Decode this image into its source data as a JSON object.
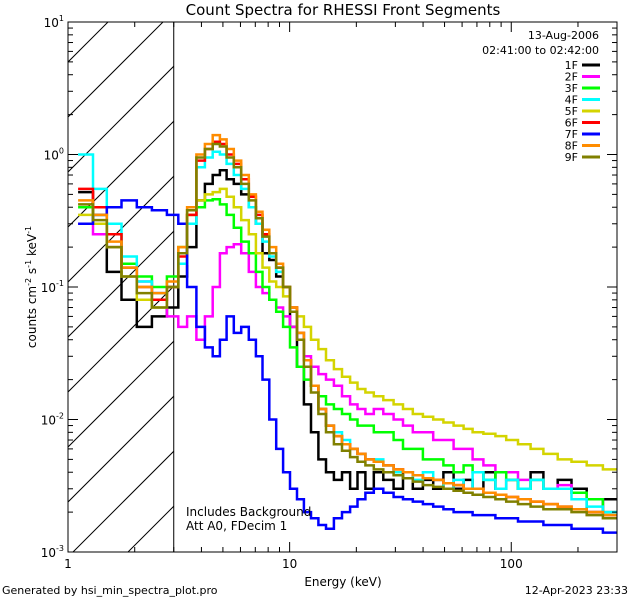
{
  "chart_data": {
    "type": "line",
    "style": "histogram-steps",
    "title": "Count Spectra for RHESSI Front Segments",
    "xlabel": "Energy (keV)",
    "ylabel": "counts cm-2 s-1 keV-1",
    "xscale": "log",
    "yscale": "log",
    "xlim": [
      1,
      300
    ],
    "ylim": [
      0.001,
      10
    ],
    "x_ticks": [
      {
        "v": 1,
        "label": "1"
      },
      {
        "v": 10,
        "label": "10"
      },
      {
        "v": 100,
        "label": "100"
      }
    ],
    "y_ticks": [
      {
        "exp": 1,
        "base": "10",
        "sup": "1"
      },
      {
        "exp": 0,
        "base": "10",
        "sup": "0"
      },
      {
        "exp": -1,
        "base": "10",
        "sup": "-1"
      },
      {
        "exp": -2,
        "base": "10",
        "sup": "-2"
      },
      {
        "exp": -3,
        "base": "10",
        "sup": "-3"
      }
    ],
    "shaded_region": {
      "x_start": 1,
      "x_end": 3,
      "pattern": "diagonal hatch"
    },
    "annotation_date": "13-Aug-2006",
    "annotation_time": "02:41:00 to 02:42:00",
    "notes": [
      "Includes Background",
      "Att A0, FDecim 1"
    ],
    "legend_position": "top-right",
    "series": [
      {
        "name": "1F",
        "color": "#000000",
        "energy": [
          1.2,
          1.4,
          1.6,
          1.9,
          2.2,
          2.6,
          3.0,
          3.3,
          3.6,
          4.0,
          4.3,
          4.7,
          5.0,
          5.4,
          5.8,
          6.3,
          6.8,
          7.3,
          7.8,
          8.4,
          9.0,
          9.7,
          10.4,
          11.2,
          12.0,
          13.0,
          14.0,
          15.2,
          16.5,
          18.0,
          19.5,
          21,
          23,
          25,
          28,
          31,
          34,
          38,
          42,
          47,
          52,
          58,
          64,
          70,
          80,
          90,
          100,
          115,
          130,
          150,
          175,
          200,
          240,
          280
        ],
        "counts": [
          0.52,
          0.3,
          0.13,
          0.08,
          0.05,
          0.06,
          0.07,
          0.12,
          0.2,
          0.45,
          0.6,
          0.7,
          0.76,
          0.65,
          0.6,
          0.5,
          0.4,
          0.3,
          0.18,
          0.16,
          0.12,
          0.1,
          0.05,
          0.025,
          0.013,
          0.008,
          0.005,
          0.004,
          0.0035,
          0.004,
          0.003,
          0.004,
          0.003,
          0.004,
          0.0035,
          0.003,
          0.004,
          0.003,
          0.0035,
          0.003,
          0.004,
          0.003,
          0.0035,
          0.003,
          0.004,
          0.003,
          0.0035,
          0.003,
          0.004,
          0.003,
          0.0035,
          0.003,
          0.002,
          0.0025
        ]
      },
      {
        "name": "2F",
        "color": "#ff00ff",
        "energy": [
          1.2,
          1.4,
          1.6,
          1.9,
          2.2,
          2.6,
          3.0,
          3.3,
          3.6,
          4.0,
          4.3,
          4.7,
          5.0,
          5.4,
          5.8,
          6.3,
          6.8,
          7.3,
          7.8,
          8.4,
          9.0,
          9.7,
          10.4,
          11.2,
          12.0,
          13.0,
          14.0,
          15.2,
          16.5,
          18.0,
          19.5,
          21,
          23,
          25,
          28,
          31,
          34,
          38,
          42,
          47,
          52,
          58,
          64,
          70,
          80,
          90,
          100,
          115,
          130,
          150,
          175,
          200,
          240,
          280
        ],
        "counts": [
          0.3,
          0.25,
          0.2,
          0.15,
          0.11,
          0.09,
          0.06,
          0.05,
          0.06,
          0.04,
          0.06,
          0.1,
          0.18,
          0.2,
          0.21,
          0.18,
          0.13,
          0.1,
          0.09,
          0.08,
          0.07,
          0.06,
          0.05,
          0.04,
          0.03,
          0.025,
          0.022,
          0.02,
          0.018,
          0.015,
          0.013,
          0.012,
          0.011,
          0.012,
          0.011,
          0.01,
          0.009,
          0.008,
          0.008,
          0.007,
          0.007,
          0.006,
          0.006,
          0.005,
          0.0045,
          0.004,
          0.004,
          0.0035,
          0.0035,
          0.003,
          0.0032,
          0.0028,
          0.0025,
          0.002
        ]
      },
      {
        "name": "3F",
        "color": "#00ff00",
        "energy": [
          1.2,
          1.4,
          1.6,
          1.9,
          2.2,
          2.6,
          3.0,
          3.3,
          3.6,
          4.0,
          4.3,
          4.7,
          5.0,
          5.4,
          5.8,
          6.3,
          6.8,
          7.3,
          7.8,
          8.4,
          9.0,
          9.7,
          10.4,
          11.2,
          12.0,
          13.0,
          14.0,
          15.2,
          16.5,
          18.0,
          19.5,
          21,
          23,
          25,
          28,
          31,
          34,
          38,
          42,
          47,
          52,
          58,
          64,
          70,
          80,
          90,
          100,
          115,
          130,
          150,
          175,
          200,
          240,
          280
        ],
        "counts": [
          0.4,
          0.35,
          0.25,
          0.15,
          0.12,
          0.1,
          0.12,
          0.2,
          0.35,
          0.4,
          0.45,
          0.46,
          0.42,
          0.35,
          0.28,
          0.22,
          0.18,
          0.13,
          0.1,
          0.08,
          0.065,
          0.05,
          0.035,
          0.025,
          0.02,
          0.018,
          0.015,
          0.013,
          0.012,
          0.011,
          0.01,
          0.009,
          0.009,
          0.008,
          0.008,
          0.007,
          0.006,
          0.006,
          0.005,
          0.005,
          0.0045,
          0.004,
          0.0045,
          0.004,
          0.0035,
          0.004,
          0.0035,
          0.003,
          0.0035,
          0.003,
          0.003,
          0.0028,
          0.0025,
          0.002
        ]
      },
      {
        "name": "4F",
        "color": "#00ffff",
        "energy": [
          1.2,
          1.4,
          1.6,
          1.9,
          2.2,
          2.6,
          3.0,
          3.3,
          3.6,
          4.0,
          4.3,
          4.7,
          5.0,
          5.4,
          5.8,
          6.3,
          6.8,
          7.3,
          7.8,
          8.4,
          9.0,
          9.7,
          10.4,
          11.2,
          12.0,
          13.0,
          14.0,
          15.2,
          16.5,
          18.0,
          19.5,
          21,
          23,
          25,
          28,
          31,
          34,
          38,
          42,
          47,
          52,
          58,
          64,
          70,
          80,
          90,
          100,
          115,
          130,
          150,
          175,
          200,
          240,
          280
        ],
        "counts": [
          1.0,
          0.55,
          0.3,
          0.17,
          0.11,
          0.09,
          0.1,
          0.15,
          0.3,
          0.8,
          0.95,
          1.05,
          1.0,
          0.85,
          0.7,
          0.55,
          0.4,
          0.3,
          0.22,
          0.17,
          0.13,
          0.1,
          0.07,
          0.045,
          0.028,
          0.018,
          0.012,
          0.009,
          0.008,
          0.007,
          0.006,
          0.0055,
          0.005,
          0.005,
          0.0045,
          0.004,
          0.004,
          0.0035,
          0.004,
          0.0035,
          0.003,
          0.0035,
          0.003,
          0.004,
          0.0035,
          0.003,
          0.0035,
          0.003,
          0.0035,
          0.003,
          0.003,
          0.0025,
          0.0022,
          0.002
        ]
      },
      {
        "name": "5F",
        "color": "#d4d400",
        "energy": [
          1.2,
          1.4,
          1.6,
          1.9,
          2.2,
          2.6,
          3.0,
          3.3,
          3.6,
          4.0,
          4.3,
          4.7,
          5.0,
          5.4,
          5.8,
          6.3,
          6.8,
          7.3,
          7.8,
          8.4,
          9.0,
          9.7,
          10.4,
          11.2,
          12.0,
          13.0,
          14.0,
          15.2,
          16.5,
          18.0,
          19.5,
          21,
          23,
          25,
          28,
          31,
          34,
          38,
          42,
          47,
          52,
          58,
          64,
          70,
          80,
          90,
          100,
          115,
          130,
          150,
          175,
          200,
          240,
          280
        ],
        "counts": [
          0.35,
          0.3,
          0.2,
          0.12,
          0.08,
          0.07,
          0.1,
          0.2,
          0.35,
          0.45,
          0.5,
          0.52,
          0.55,
          0.48,
          0.4,
          0.32,
          0.25,
          0.18,
          0.14,
          0.11,
          0.1,
          0.085,
          0.07,
          0.06,
          0.05,
          0.04,
          0.034,
          0.028,
          0.024,
          0.021,
          0.019,
          0.017,
          0.016,
          0.015,
          0.014,
          0.013,
          0.012,
          0.011,
          0.0105,
          0.01,
          0.0095,
          0.009,
          0.0085,
          0.008,
          0.0078,
          0.0075,
          0.007,
          0.0065,
          0.006,
          0.0055,
          0.005,
          0.0048,
          0.0045,
          0.0042
        ]
      },
      {
        "name": "6F",
        "color": "#ff0000",
        "energy": [
          1.2,
          1.4,
          1.6,
          1.9,
          2.2,
          2.6,
          3.0,
          3.3,
          3.6,
          4.0,
          4.3,
          4.7,
          5.0,
          5.4,
          5.8,
          6.3,
          6.8,
          7.3,
          7.8,
          8.4,
          9.0,
          9.7,
          10.4,
          11.2,
          12.0,
          13.0,
          14.0,
          15.2,
          16.5,
          18.0,
          19.5,
          21,
          23,
          25,
          28,
          31,
          34,
          38,
          42,
          47,
          52,
          58,
          64,
          70,
          80,
          90,
          100,
          115,
          130,
          150,
          175,
          200,
          240,
          280
        ],
        "counts": [
          0.55,
          0.4,
          0.25,
          0.14,
          0.1,
          0.08,
          0.1,
          0.17,
          0.35,
          0.9,
          1.1,
          1.25,
          1.2,
          1.0,
          0.85,
          0.65,
          0.48,
          0.35,
          0.25,
          0.18,
          0.14,
          0.1,
          0.07,
          0.045,
          0.028,
          0.018,
          0.012,
          0.009,
          0.0075,
          0.0065,
          0.006,
          0.0055,
          0.005,
          0.0048,
          0.0045,
          0.0042,
          0.004,
          0.0038,
          0.0036,
          0.0035,
          0.0033,
          0.0032,
          0.003,
          0.003,
          0.0028,
          0.0027,
          0.0026,
          0.0025,
          0.0024,
          0.0023,
          0.0022,
          0.0021,
          0.002,
          0.0019
        ]
      },
      {
        "name": "7F",
        "color": "#0000ff",
        "energy": [
          1.2,
          1.4,
          1.6,
          1.9,
          2.2,
          2.6,
          3.0,
          3.3,
          3.6,
          4.0,
          4.3,
          4.7,
          5.0,
          5.4,
          5.8,
          6.3,
          6.8,
          7.3,
          7.8,
          8.4,
          9.0,
          9.7,
          10.4,
          11.2,
          12.0,
          13.0,
          14.0,
          15.2,
          16.5,
          18.0,
          19.5,
          21,
          23,
          25,
          28,
          31,
          34,
          38,
          42,
          47,
          52,
          58,
          64,
          70,
          80,
          90,
          100,
          115,
          130,
          150,
          175,
          200,
          240,
          280
        ],
        "counts": [
          0.3,
          0.35,
          0.4,
          0.45,
          0.4,
          0.38,
          0.35,
          0.3,
          0.1,
          0.05,
          0.035,
          0.03,
          0.04,
          0.06,
          0.045,
          0.05,
          0.04,
          0.03,
          0.02,
          0.01,
          0.006,
          0.004,
          0.003,
          0.0025,
          0.002,
          0.0018,
          0.0016,
          0.0015,
          0.0018,
          0.002,
          0.0022,
          0.0025,
          0.0028,
          0.003,
          0.0028,
          0.0026,
          0.0025,
          0.0024,
          0.0023,
          0.0022,
          0.0021,
          0.002,
          0.002,
          0.0019,
          0.0019,
          0.0018,
          0.0018,
          0.0017,
          0.0017,
          0.0016,
          0.0016,
          0.0015,
          0.0015,
          0.0014
        ]
      },
      {
        "name": "8F",
        "color": "#ff8c00",
        "energy": [
          1.2,
          1.4,
          1.6,
          1.9,
          2.2,
          2.6,
          3.0,
          3.3,
          3.6,
          4.0,
          4.3,
          4.7,
          5.0,
          5.4,
          5.8,
          6.3,
          6.8,
          7.3,
          7.8,
          8.4,
          9.0,
          9.7,
          10.4,
          11.2,
          12.0,
          13.0,
          14.0,
          15.2,
          16.5,
          18.0,
          19.5,
          21,
          23,
          25,
          28,
          31,
          34,
          38,
          42,
          47,
          52,
          58,
          64,
          70,
          80,
          90,
          100,
          115,
          130,
          150,
          175,
          200,
          240,
          280
        ],
        "counts": [
          0.45,
          0.35,
          0.22,
          0.14,
          0.1,
          0.09,
          0.11,
          0.2,
          0.4,
          1.0,
          1.2,
          1.4,
          1.3,
          1.1,
          0.9,
          0.7,
          0.5,
          0.37,
          0.27,
          0.2,
          0.15,
          0.1,
          0.07,
          0.045,
          0.028,
          0.018,
          0.012,
          0.009,
          0.0075,
          0.0065,
          0.006,
          0.0055,
          0.005,
          0.0048,
          0.0045,
          0.0042,
          0.004,
          0.0038,
          0.0036,
          0.0035,
          0.0033,
          0.0032,
          0.003,
          0.003,
          0.0028,
          0.0027,
          0.0026,
          0.0025,
          0.0024,
          0.0023,
          0.0022,
          0.0021,
          0.002,
          0.0019
        ]
      },
      {
        "name": "9F",
        "color": "#808000",
        "energy": [
          1.2,
          1.4,
          1.6,
          1.9,
          2.2,
          2.6,
          3.0,
          3.3,
          3.6,
          4.0,
          4.3,
          4.7,
          5.0,
          5.4,
          5.8,
          6.3,
          6.8,
          7.3,
          7.8,
          8.4,
          9.0,
          9.7,
          10.4,
          11.2,
          12.0,
          13.0,
          14.0,
          15.2,
          16.5,
          18.0,
          19.5,
          21,
          23,
          25,
          28,
          31,
          34,
          38,
          42,
          47,
          52,
          58,
          64,
          70,
          80,
          90,
          100,
          115,
          130,
          150,
          175,
          200,
          240,
          280
        ],
        "counts": [
          0.42,
          0.32,
          0.2,
          0.12,
          0.09,
          0.07,
          0.1,
          0.18,
          0.38,
          0.95,
          1.1,
          1.2,
          1.15,
          0.95,
          0.8,
          0.6,
          0.45,
          0.33,
          0.24,
          0.18,
          0.14,
          0.1,
          0.065,
          0.04,
          0.025,
          0.016,
          0.011,
          0.008,
          0.0065,
          0.0058,
          0.0052,
          0.0048,
          0.0045,
          0.0042,
          0.004,
          0.0038,
          0.0036,
          0.0034,
          0.0032,
          0.0031,
          0.003,
          0.0029,
          0.0028,
          0.0027,
          0.0026,
          0.0025,
          0.0024,
          0.0023,
          0.0022,
          0.0021,
          0.0021,
          0.002,
          0.0019,
          0.0018
        ]
      }
    ]
  },
  "footer": {
    "left": "Generated by hsi_min_spectra_plot.pro",
    "right": "12-Apr-2023 23:33"
  }
}
